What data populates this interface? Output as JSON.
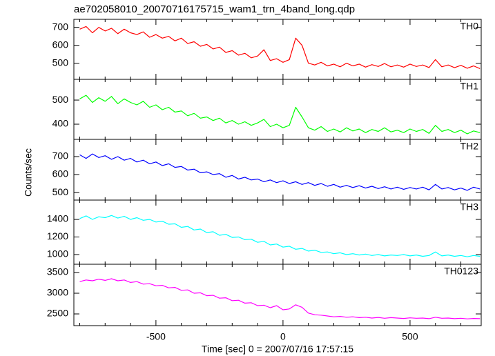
{
  "chart_data": {
    "type": "line",
    "title": "ae702058010_20070716175715_wam1_trn_4band_long.qdp",
    "xlabel": "Time [sec] 0 = 2007/07/16 17:57:15",
    "ylabel": "Counts/sec",
    "xlim": [
      -823,
      780
    ],
    "xticks": [
      -500,
      0,
      500
    ],
    "xminorticks": [
      -800,
      -700,
      -600,
      -400,
      -300,
      -200,
      -100,
      100,
      200,
      300,
      400,
      600,
      700
    ],
    "x": [
      -800,
      -775,
      -750,
      -725,
      -700,
      -675,
      -650,
      -625,
      -600,
      -575,
      -550,
      -525,
      -500,
      -475,
      -450,
      -425,
      -400,
      -375,
      -350,
      -325,
      -300,
      -275,
      -250,
      -225,
      -200,
      -175,
      -150,
      -125,
      -100,
      -75,
      -50,
      -25,
      0,
      25,
      50,
      75,
      100,
      125,
      150,
      175,
      200,
      225,
      250,
      275,
      300,
      325,
      350,
      375,
      400,
      425,
      450,
      475,
      500,
      525,
      550,
      575,
      600,
      625,
      650,
      675,
      700,
      725,
      750,
      775
    ],
    "series": [
      {
        "name": "TH0",
        "color": "#ff0000",
        "ylim": [
          410,
          745
        ],
        "yticks": [
          500,
          600,
          700
        ],
        "values": [
          690,
          705,
          670,
          700,
          680,
          695,
          665,
          690,
          670,
          660,
          675,
          645,
          660,
          640,
          650,
          625,
          640,
          610,
          620,
          595,
          605,
          580,
          590,
          560,
          570,
          545,
          555,
          530,
          540,
          575,
          515,
          525,
          505,
          520,
          640,
          600,
          500,
          490,
          505,
          485,
          495,
          480,
          500,
          485,
          495,
          478,
          492,
          482,
          498,
          480,
          490,
          478,
          495,
          482,
          490,
          476,
          520,
          480,
          490,
          475,
          488,
          472,
          485,
          470
        ]
      },
      {
        "name": "TH1",
        "color": "#00ff00",
        "ylim": [
          337,
          586
        ],
        "yticks": [
          400,
          500
        ],
        "values": [
          505,
          520,
          490,
          510,
          495,
          515,
          485,
          505,
          490,
          480,
          495,
          470,
          480,
          460,
          470,
          450,
          455,
          435,
          445,
          425,
          430,
          415,
          425,
          405,
          415,
          400,
          410,
          395,
          405,
          420,
          390,
          400,
          385,
          395,
          470,
          430,
          385,
          375,
          390,
          370,
          380,
          368,
          385,
          372,
          380,
          365,
          378,
          370,
          385,
          368,
          375,
          365,
          380,
          370,
          378,
          362,
          395,
          370,
          378,
          365,
          375,
          360,
          372,
          365
        ]
      },
      {
        "name": "TH2",
        "color": "#0000ff",
        "ylim": [
          458,
          796
        ],
        "yticks": [
          500,
          600,
          700
        ],
        "values": [
          710,
          690,
          715,
          695,
          705,
          685,
          700,
          680,
          690,
          670,
          680,
          660,
          670,
          650,
          660,
          640,
          645,
          625,
          630,
          610,
          615,
          600,
          605,
          585,
          595,
          575,
          585,
          570,
          575,
          560,
          570,
          555,
          565,
          550,
          560,
          545,
          555,
          540,
          550,
          535,
          545,
          530,
          540,
          528,
          538,
          525,
          535,
          522,
          532,
          520,
          530,
          518,
          528,
          520,
          530,
          515,
          545,
          520,
          528,
          515,
          525,
          512,
          530,
          520
        ]
      },
      {
        "name": "TH3",
        "color": "#00ffff",
        "ylim": [
          890,
          1620
        ],
        "yticks": [
          1000,
          1200,
          1400
        ],
        "values": [
          1410,
          1440,
          1400,
          1430,
          1420,
          1445,
          1415,
          1435,
          1400,
          1420,
          1390,
          1400,
          1370,
          1380,
          1345,
          1350,
          1310,
          1320,
          1280,
          1290,
          1250,
          1260,
          1220,
          1230,
          1195,
          1200,
          1170,
          1175,
          1140,
          1150,
          1110,
          1120,
          1085,
          1095,
          1060,
          1070,
          1040,
          1050,
          1025,
          1030,
          1010,
          1020,
          1000,
          1010,
          995,
          1005,
          990,
          1000,
          985,
          995,
          990,
          1000,
          985,
          995,
          980,
          990,
          1030,
          985,
          995,
          980,
          990,
          975,
          990,
          980
        ]
      },
      {
        "name": "TH0123",
        "color": "#ff00ff",
        "ylim": [
          2217,
          3700
        ],
        "yticks": [
          2500,
          3000,
          3500
        ],
        "values": [
          3280,
          3320,
          3300,
          3340,
          3310,
          3350,
          3300,
          3320,
          3260,
          3280,
          3220,
          3230,
          3180,
          3190,
          3130,
          3140,
          3070,
          3080,
          3000,
          3010,
          2940,
          2950,
          2880,
          2890,
          2820,
          2830,
          2760,
          2770,
          2700,
          2710,
          2650,
          2700,
          2600,
          2620,
          2720,
          2660,
          2520,
          2480,
          2470,
          2450,
          2430,
          2440,
          2420,
          2430,
          2410,
          2420,
          2400,
          2415,
          2395,
          2410,
          2400,
          2390,
          2405,
          2395,
          2400,
          2385,
          2420,
          2395,
          2400,
          2385,
          2395,
          2380,
          2390,
          2385
        ]
      }
    ]
  }
}
